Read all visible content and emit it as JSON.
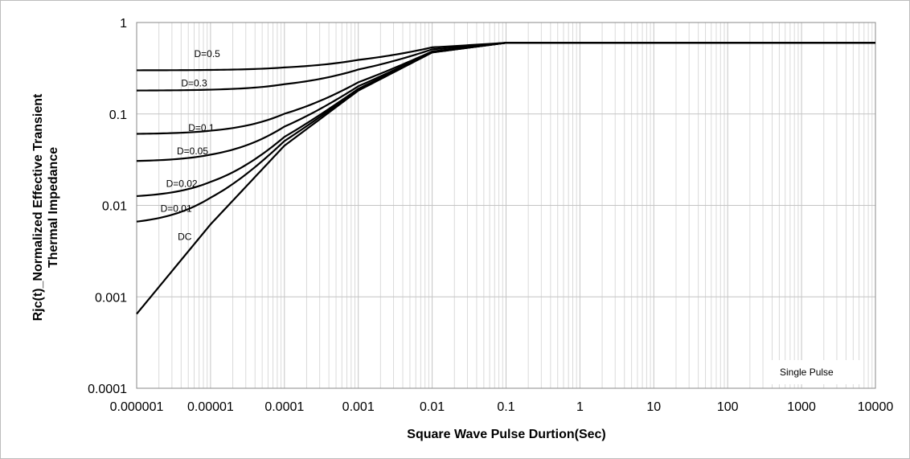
{
  "chart_data": {
    "type": "line",
    "title": "",
    "xlabel": "Square Wave Pulse Durtion(Sec)",
    "ylabel_lines": [
      "Rjc(t)_Normalized Effective Transient",
      "Thermal Impedance"
    ],
    "xscale": "log",
    "yscale": "log",
    "xlim": [
      1e-06,
      10000
    ],
    "ylim": [
      0.0001,
      1
    ],
    "grid": true,
    "x_tick_labels": [
      "0.000001",
      "0.00001",
      "0.0001",
      "0.001",
      "0.01",
      "0.1",
      "1",
      "10",
      "100",
      "1000",
      "10000"
    ],
    "y_tick_labels": [
      "1",
      "0.1",
      "0.01",
      "0.001",
      "0.0001"
    ],
    "legend_text": "Single Pulse",
    "legend_position": "bottom-right",
    "series": [
      {
        "name": "D=0.5",
        "r": 0.5,
        "label_at": [
          6e-06,
          0.42
        ]
      },
      {
        "name": "D=0.3",
        "r": 0.3,
        "label_at": [
          4e-06,
          0.2
        ]
      },
      {
        "name": "D=0.1",
        "r": 0.1,
        "label_at": [
          5e-06,
          0.065
        ]
      },
      {
        "name": "D=0.05",
        "r": 0.05,
        "label_at": [
          3.5e-06,
          0.036
        ]
      },
      {
        "name": "D=0.02",
        "r": 0.02,
        "label_at": [
          2.5e-06,
          0.016
        ]
      },
      {
        "name": "D=0.01",
        "r": 0.01,
        "label_at": [
          2.1e-06,
          0.0085
        ]
      },
      {
        "name": "DC",
        "r": 0,
        "label_at": [
          3.6e-06,
          0.0042
        ]
      }
    ],
    "dc_curve": {
      "points": [
        [
          1e-06,
          0.00065
        ],
        [
          1e-05,
          0.0062
        ],
        [
          0.0001,
          0.045
        ],
        [
          0.001,
          0.18
        ],
        [
          0.01,
          0.47
        ],
        [
          0.1,
          0.6
        ],
        [
          10000,
          0.6
        ]
      ],
      "steady_state": 0.6
    }
  }
}
